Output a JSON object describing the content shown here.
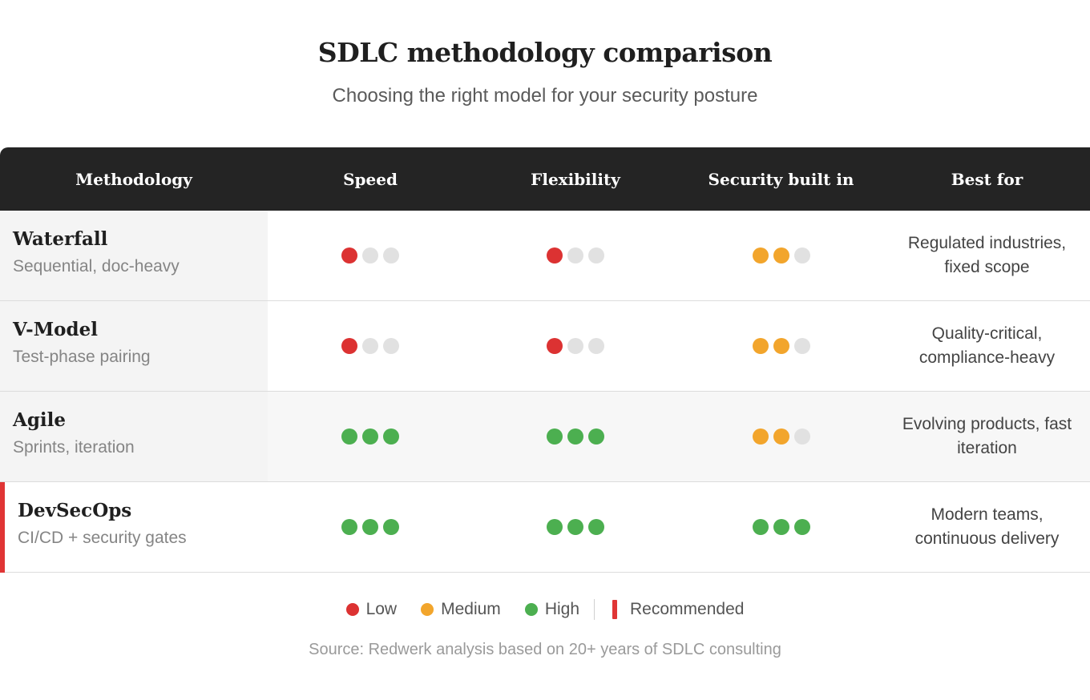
{
  "header": {
    "title": "SDLC methodology comparison",
    "subtitle": "Choosing the right model for your security posture"
  },
  "table": {
    "columns": [
      "Methodology",
      "Speed",
      "Flexibility",
      "Security built in",
      "Best for"
    ],
    "rows": [
      {
        "name": "Waterfall",
        "description": "Sequential, doc-heavy",
        "speed": 1,
        "flexibility": 1,
        "security": 2,
        "best_for_lines": [
          "Regulated industries,",
          "fixed scope"
        ],
        "recommended": false
      },
      {
        "name": "V-Model",
        "description": "Test-phase pairing",
        "speed": 1,
        "flexibility": 1,
        "security": 2,
        "best_for_lines": [
          "Quality-critical,",
          "compliance-heavy"
        ],
        "recommended": false
      },
      {
        "name": "Agile",
        "description": "Sprints, iteration",
        "speed": 3,
        "flexibility": 3,
        "security": 2,
        "best_for_lines": [
          "Evolving products, fast",
          "iteration"
        ],
        "recommended": false
      },
      {
        "name": "DevSecOps",
        "description": "CI/CD + security gates",
        "speed": 3,
        "flexibility": 3,
        "security": 3,
        "best_for_lines": [
          "Modern teams,",
          "continuous delivery"
        ],
        "recommended": true
      }
    ],
    "max_rating": 3
  },
  "legend": {
    "low_label": "Low",
    "medium_label": "Medium",
    "high_label": "High",
    "recommended_label": "Recommended"
  },
  "source": "Source: Redwerk analysis based on 20+ years of SDLC consulting",
  "colors": {
    "low": "#dc3232",
    "medium": "#f2a52c",
    "high": "#4caf50",
    "empty": "#e1e1e1",
    "recommended": "#e03535",
    "header_bg": "#242424"
  }
}
